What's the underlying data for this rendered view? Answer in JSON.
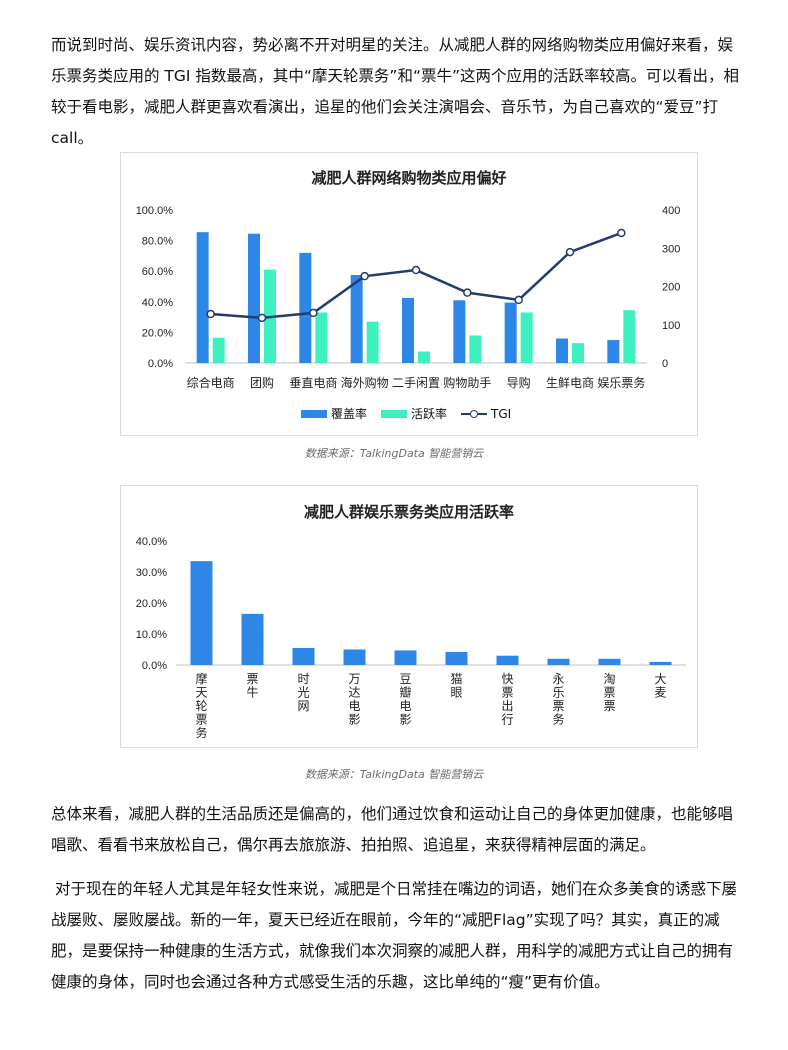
{
  "paragraphs": {
    "intro": "而说到时尚、娱乐资讯内容，势必离不开对明星的关注。从减肥人群的网络购物类应用偏好来看，娱乐票务类应用的 TGI 指数最高，其中“摩天轮票务”和“票牛”这两个应用的活跃率较高。可以看出，相较于看电影，减肥人群更喜欢看演出，追星的他们会关注演唱会、音乐节，为自己喜欢的“爱豆”打 call。",
    "summary": "总体来看，减肥人群的生活品质还是偏高的，他们通过饮食和运动让自己的身体更加健康，也能够唱唱歌、看看书来放松自己，偶尔再去旅旅游、拍拍照、追追星，来获得精神层面的满足。",
    "closing": "对于现在的年轻人尤其是年轻女性来说，减肥是个日常挂在嘴边的词语，她们在众多美食的诱惑下屡战屡败、屡败屡战。新的一年，夏天已经近在眼前，今年的“减肥Flag”实现了吗？其实，真正的减肥，是要保持一种健康的生活方式，就像我们本次洞察的减肥人群，用科学的减肥方式让自己的拥有健康的身体，同时也会通过各种方式感受生活的乐趣，这比单纯的“瘦”更有价值。"
  },
  "captions": {
    "chart1": "数据来源：TalkingData 智能营销云",
    "chart2": "数据来源：TalkingData 智能营销云"
  },
  "colors": {
    "coverage": "#2e86e6",
    "active": "#3ef0c0",
    "tgi": "#233b6e",
    "bar2": "#2e86e6"
  },
  "chart_data": [
    {
      "type": "bar",
      "title": "减肥人群网络购物类应用偏好",
      "categories": [
        "综合电商",
        "团购",
        "垂直电商",
        "海外购物",
        "二手闲置",
        "购物助手",
        "导购",
        "生鲜电商",
        "娱乐票务"
      ],
      "series": [
        {
          "name": "覆盖率",
          "type": "bar",
          "axis": "left",
          "values": [
            85.5,
            84.5,
            72,
            57.5,
            42.5,
            41,
            39.5,
            16,
            15
          ]
        },
        {
          "name": "活跃率",
          "type": "bar",
          "axis": "left",
          "values": [
            16.5,
            61,
            33,
            27,
            7.5,
            18,
            33,
            13,
            34.5
          ]
        },
        {
          "name": "TGI",
          "type": "line",
          "axis": "right",
          "values": [
            128,
            118,
            131,
            227,
            243,
            184,
            165,
            290,
            340
          ]
        }
      ],
      "left_axis": {
        "ticks": [
          "0.0%",
          "20.0%",
          "40.0%",
          "60.0%",
          "80.0%",
          "100.0%"
        ],
        "ylim": [
          0,
          100
        ]
      },
      "right_axis": {
        "ticks": [
          "0",
          "100",
          "200",
          "300",
          "400"
        ],
        "ylim": [
          0,
          400
        ]
      },
      "legend": "bottom",
      "grid": false
    },
    {
      "type": "bar",
      "title": "减肥人群娱乐票务类应用活跃率",
      "categories": [
        "摩天轮票务",
        "票牛",
        "时光网",
        "万达电影",
        "豆瓣电影",
        "猫眼",
        "快票出行",
        "永乐票务",
        "淘票票",
        "大麦"
      ],
      "values": [
        33.5,
        16.5,
        5.5,
        5,
        4.7,
        4.2,
        3,
        2,
        2,
        1
      ],
      "y_axis": {
        "ticks": [
          "0.0%",
          "10.0%",
          "20.0%",
          "30.0%",
          "40.0%"
        ],
        "ylim": [
          0,
          40
        ]
      },
      "grid": false
    }
  ]
}
